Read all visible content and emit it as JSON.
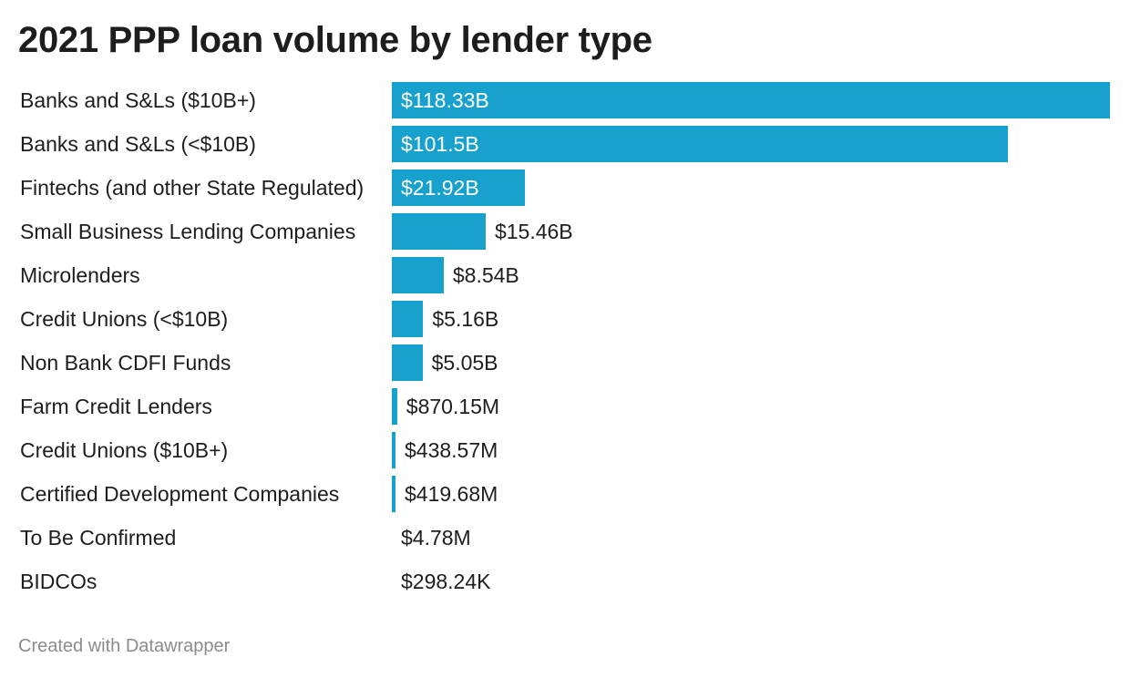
{
  "title": "2021 PPP loan volume by lender type",
  "footer": "Created with Datawrapper",
  "colors": {
    "bar": "#18a1cd",
    "label_inside": "#ffffff",
    "label_outside": "#1d1d1d",
    "footer": "#8c8c8c"
  },
  "chart_data": {
    "type": "bar",
    "orientation": "horizontal",
    "title": "2021 PPP loan volume by lender type",
    "xlabel": "",
    "ylabel": "",
    "grid": false,
    "legend": "none",
    "unit": "USD",
    "xlim": [
      0,
      118.33
    ],
    "categories": [
      "Banks and S&Ls ($10B+)",
      "Banks and S&Ls (<$10B)",
      "Fintechs (and other State Regulated)",
      "Small Business Lending Companies",
      "Microlenders",
      "Credit Unions (<$10B)",
      "Non Bank CDFI Funds",
      "Farm Credit Lenders",
      "Credit Unions ($10B+)",
      "Certified Development Companies",
      "To Be Confirmed",
      "BIDCOs"
    ],
    "values_billions": [
      118.33,
      101.5,
      21.92,
      15.46,
      8.54,
      5.16,
      5.05,
      0.87015,
      0.43857,
      0.41968,
      0.00478,
      0.00029824
    ],
    "value_labels": [
      "$118.33B",
      "$101.5B",
      "$21.92B",
      "$15.46B",
      "$8.54B",
      "$5.16B",
      "$5.05B",
      "$870.15M",
      "$438.57M",
      "$419.68M",
      "$4.78M",
      "$298.24K"
    ]
  }
}
